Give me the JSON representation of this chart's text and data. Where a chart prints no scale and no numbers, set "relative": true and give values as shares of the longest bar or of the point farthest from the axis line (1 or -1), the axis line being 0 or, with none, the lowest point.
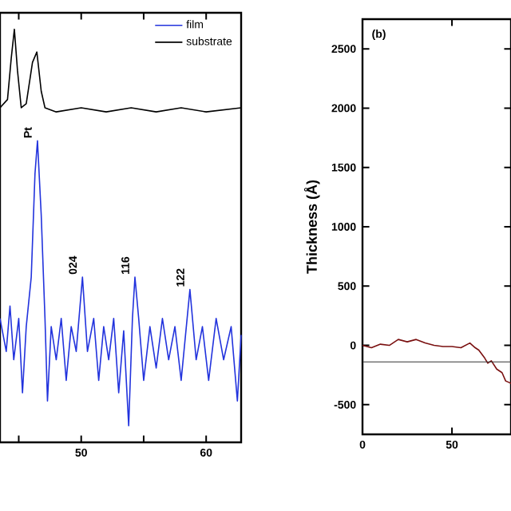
{
  "chart_data": [
    {
      "type": "line",
      "relative": true,
      "xlim": [
        43.5,
        62.8
      ],
      "xticks": [
        {
          "value": 45,
          "label": null
        },
        50,
        {
          "value": 55,
          "label": null
        },
        60
      ],
      "tick_labels": "x",
      "legend": "top right",
      "x": [
        43.5,
        44,
        44.3,
        44.6,
        45,
        45.3,
        45.6,
        46,
        46.3,
        46.5,
        46.8,
        47.1,
        47.3,
        47.6,
        48,
        48.4,
        48.8,
        49.2,
        49.6,
        50.1,
        50.5,
        51,
        51.4,
        51.8,
        52.2,
        52.6,
        53,
        53.4,
        53.8,
        54.1,
        54.3,
        54.6,
        55,
        55.5,
        56,
        56.5,
        57,
        57.5,
        58,
        58.7,
        59.2,
        59.7,
        60.2,
        60.8,
        61.4,
        62,
        62.5,
        62.8
      ],
      "series": [
        {
          "name": "film",
          "color": "#2233dd",
          "values": [
            0.3,
            0.22,
            0.33,
            0.2,
            0.3,
            0.12,
            0.28,
            0.4,
            0.65,
            0.73,
            0.55,
            0.3,
            0.1,
            0.28,
            0.2,
            0.3,
            0.15,
            0.28,
            0.22,
            0.4,
            0.22,
            0.3,
            0.15,
            0.28,
            0.2,
            0.3,
            0.12,
            0.27,
            0.04,
            0.3,
            0.4,
            0.3,
            0.15,
            0.28,
            0.18,
            0.3,
            0.2,
            0.28,
            0.15,
            0.37,
            0.2,
            0.28,
            0.15,
            0.3,
            0.2,
            0.28,
            0.1,
            0.26
          ]
        },
        {
          "name": "substrate",
          "color": "#000000",
          "x": [
            43.5,
            44.1,
            44.4,
            44.65,
            44.9,
            45.2,
            45.6,
            46.1,
            46.45,
            46.8,
            47.1,
            48,
            50,
            52,
            54,
            56,
            58,
            60,
            62.8
          ],
          "values": [
            0.81,
            0.83,
            0.93,
            1.0,
            0.9,
            0.81,
            0.82,
            0.92,
            0.945,
            0.85,
            0.81,
            0.8,
            0.81,
            0.8,
            0.81,
            0.8,
            0.81,
            0.8,
            0.81
          ]
        }
      ],
      "annotations": [
        {
          "text": "Pt",
          "x": 46.5,
          "y": 0.73
        },
        {
          "text": "024",
          "x": 50.1,
          "y": 0.4
        },
        {
          "text": "116",
          "x": 54.3,
          "y": 0.4
        },
        {
          "text": "122",
          "x": 58.7,
          "y": 0.37
        }
      ]
    },
    {
      "type": "line",
      "ylabel": "Thickness (Å)",
      "xlim": [
        0,
        83
      ],
      "ylim": [
        -750,
        2750
      ],
      "xticks": [
        0,
        50
      ],
      "yticks": [
        -500,
        0,
        500,
        1000,
        1500,
        2000,
        2500
      ],
      "x": [
        0,
        5,
        10,
        15,
        20,
        25,
        30,
        35,
        40,
        45,
        50,
        55,
        60,
        63,
        65,
        68,
        70,
        72,
        75,
        78,
        80,
        83
      ],
      "series": [
        {
          "color": "#7a1010",
          "values": [
            0,
            -20,
            10,
            0,
            50,
            30,
            50,
            20,
            0,
            -10,
            -10,
            -20,
            20,
            -20,
            -40,
            -100,
            -150,
            -130,
            -200,
            -230,
            -300,
            -320
          ]
        }
      ],
      "ref_lines": [
        {
          "axis": "y",
          "value": -140,
          "color": "#333333"
        }
      ],
      "annotations": [
        "(b)"
      ]
    }
  ]
}
